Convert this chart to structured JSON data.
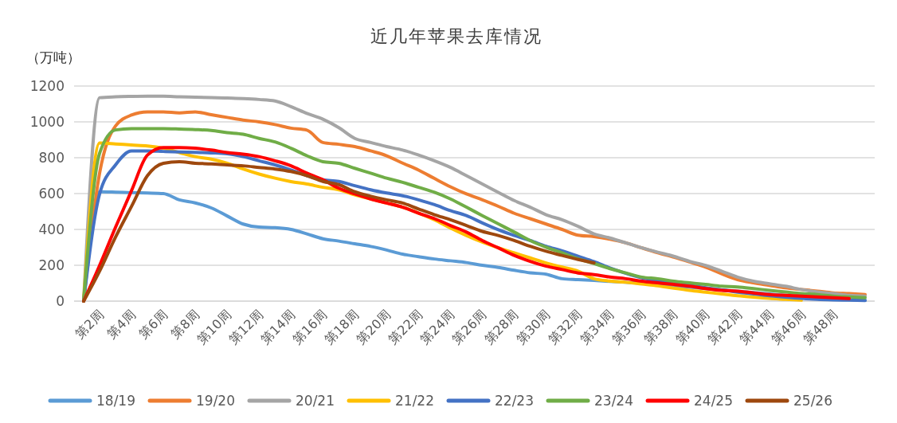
{
  "chart_data": {
    "type": "line",
    "title": "近几年苹果去库情况",
    "ylabel": "（万吨）",
    "categories": [
      null,
      "第2周",
      null,
      "第4周",
      null,
      "第6周",
      null,
      "第8周",
      null,
      "第10周",
      null,
      "第12周",
      null,
      "第14周",
      null,
      "第16周",
      null,
      "第18周",
      null,
      "第20周",
      null,
      "第22周",
      null,
      "第24周",
      null,
      "第26周",
      null,
      "第28周",
      null,
      "第30周",
      null,
      "第32周",
      null,
      "第34周",
      null,
      "第36周",
      null,
      "第38周",
      null,
      "第40周",
      null,
      "第42周",
      null,
      "第44周",
      null,
      "第46周",
      null,
      "第48周",
      null,
      null
    ],
    "ylim": [
      0,
      1200
    ],
    "yticks": [
      0,
      200,
      400,
      600,
      800,
      1000,
      1200
    ],
    "grid": "y",
    "legend": "bottom",
    "marker": "none",
    "line_style": "solid",
    "series": [
      {
        "name": "18/19",
        "color": "#5b9bd5",
        "values": [
          0,
          610,
          608,
          605,
          603,
          600,
          565,
          548,
          520,
          475,
          430,
          413,
          410,
          400,
          375,
          348,
          335,
          320,
          305,
          285,
          262,
          248,
          235,
          225,
          215,
          200,
          188,
          172,
          158,
          150,
          125,
          120,
          115,
          110,
          105,
          100,
          92,
          85,
          78,
          70,
          62,
          55,
          48,
          40,
          32,
          25,
          18,
          12,
          8,
          5
        ]
      },
      {
        "name": "19/20",
        "color": "#ed7d31",
        "values": [
          0,
          714,
          977,
          1038,
          1056,
          1056,
          1050,
          1056,
          1040,
          1025,
          1010,
          1000,
          985,
          965,
          954,
          885,
          875,
          862,
          838,
          811,
          770,
          731,
          684,
          638,
          598,
          565,
          529,
          490,
          460,
          430,
          400,
          368,
          360,
          345,
          325,
          297,
          270,
          245,
          218,
          190,
          153,
          120,
          102,
          88,
          74,
          65,
          56,
          46,
          42,
          37
        ]
      },
      {
        "name": "20/21",
        "color": "#a5a5a5",
        "values": [
          0,
          1135,
          1140,
          1142,
          1143,
          1143,
          1140,
          1138,
          1136,
          1133,
          1130,
          1125,
          1117,
          1085,
          1047,
          1015,
          968,
          908,
          885,
          862,
          843,
          815,
          783,
          746,
          700,
          653,
          607,
          561,
          524,
          482,
          454,
          417,
          375,
          352,
          325,
          297,
          273,
          250,
          222,
          199,
          167,
          134,
          111,
          97,
          83,
          65,
          51,
          42,
          32,
          28
        ]
      },
      {
        "name": "21/22",
        "color": "#ffc000",
        "values": [
          0,
          882,
          877,
          871,
          866,
          853,
          829,
          806,
          792,
          769,
          737,
          709,
          686,
          667,
          653,
          635,
          621,
          593,
          570,
          547,
          524,
          491,
          454,
          408,
          366,
          329,
          297,
          269,
          241,
          213,
          190,
          167,
          125,
          112,
          105,
          95,
          85,
          72,
          60,
          50,
          40,
          30,
          22,
          15,
          10,
          5,
          null,
          null,
          null,
          null
        ]
      },
      {
        "name": "22/23",
        "color": "#4472c4",
        "values": [
          0,
          598,
          760,
          838,
          838,
          835,
          832,
          830,
          827,
          822,
          806,
          783,
          760,
          732,
          700,
          677,
          668,
          644,
          621,
          603,
          588,
          565,
          538,
          505,
          477,
          436,
          398,
          366,
          338,
          306,
          280,
          250,
          220,
          185,
          155,
          130,
          115,
          100,
          88,
          75,
          62,
          50,
          40,
          30,
          22,
          15,
          10,
          7,
          5,
          3
        ]
      },
      {
        "name": "23/24",
        "color": "#70ad47",
        "values": [
          0,
          825,
          955,
          962,
          962,
          962,
          960,
          957,
          952,
          940,
          931,
          908,
          888,
          853,
          811,
          778,
          769,
          741,
          714,
          686,
          663,
          635,
          607,
          570,
          524,
          477,
          431,
          385,
          338,
          301,
          269,
          236,
          210,
          181,
          157,
          134,
          125,
          111,
          102,
          93,
          83,
          79,
          70,
          60,
          51,
          42,
          37,
          28,
          23,
          19
        ]
      },
      {
        "name": "24/25",
        "color": "#ff0000",
        "values": [
          0,
          199,
          412,
          616,
          815,
          857,
          857,
          853,
          843,
          829,
          820,
          806,
          783,
          755,
          714,
          677,
          630,
          598,
          570,
          547,
          524,
          491,
          460,
          422,
          385,
          338,
          297,
          255,
          222,
          195,
          176,
          157,
          148,
          134,
          125,
          111,
          102,
          93,
          83,
          70,
          60,
          56,
          46,
          37,
          32,
          28,
          23,
          19,
          14,
          null
        ]
      },
      {
        "name": "25/26",
        "color": "#9e480e",
        "values": [
          0,
          167,
          357,
          528,
          700,
          769,
          778,
          769,
          766,
          760,
          755,
          746,
          737,
          723,
          700,
          668,
          650,
          610,
          585,
          565,
          547,
          514,
          482,
          454,
          422,
          389,
          366,
          338,
          306,
          278,
          255,
          232,
          213,
          null,
          null,
          null,
          null,
          null,
          null,
          null,
          null,
          null,
          null,
          null,
          null,
          null,
          null,
          null,
          null,
          null
        ]
      }
    ]
  }
}
